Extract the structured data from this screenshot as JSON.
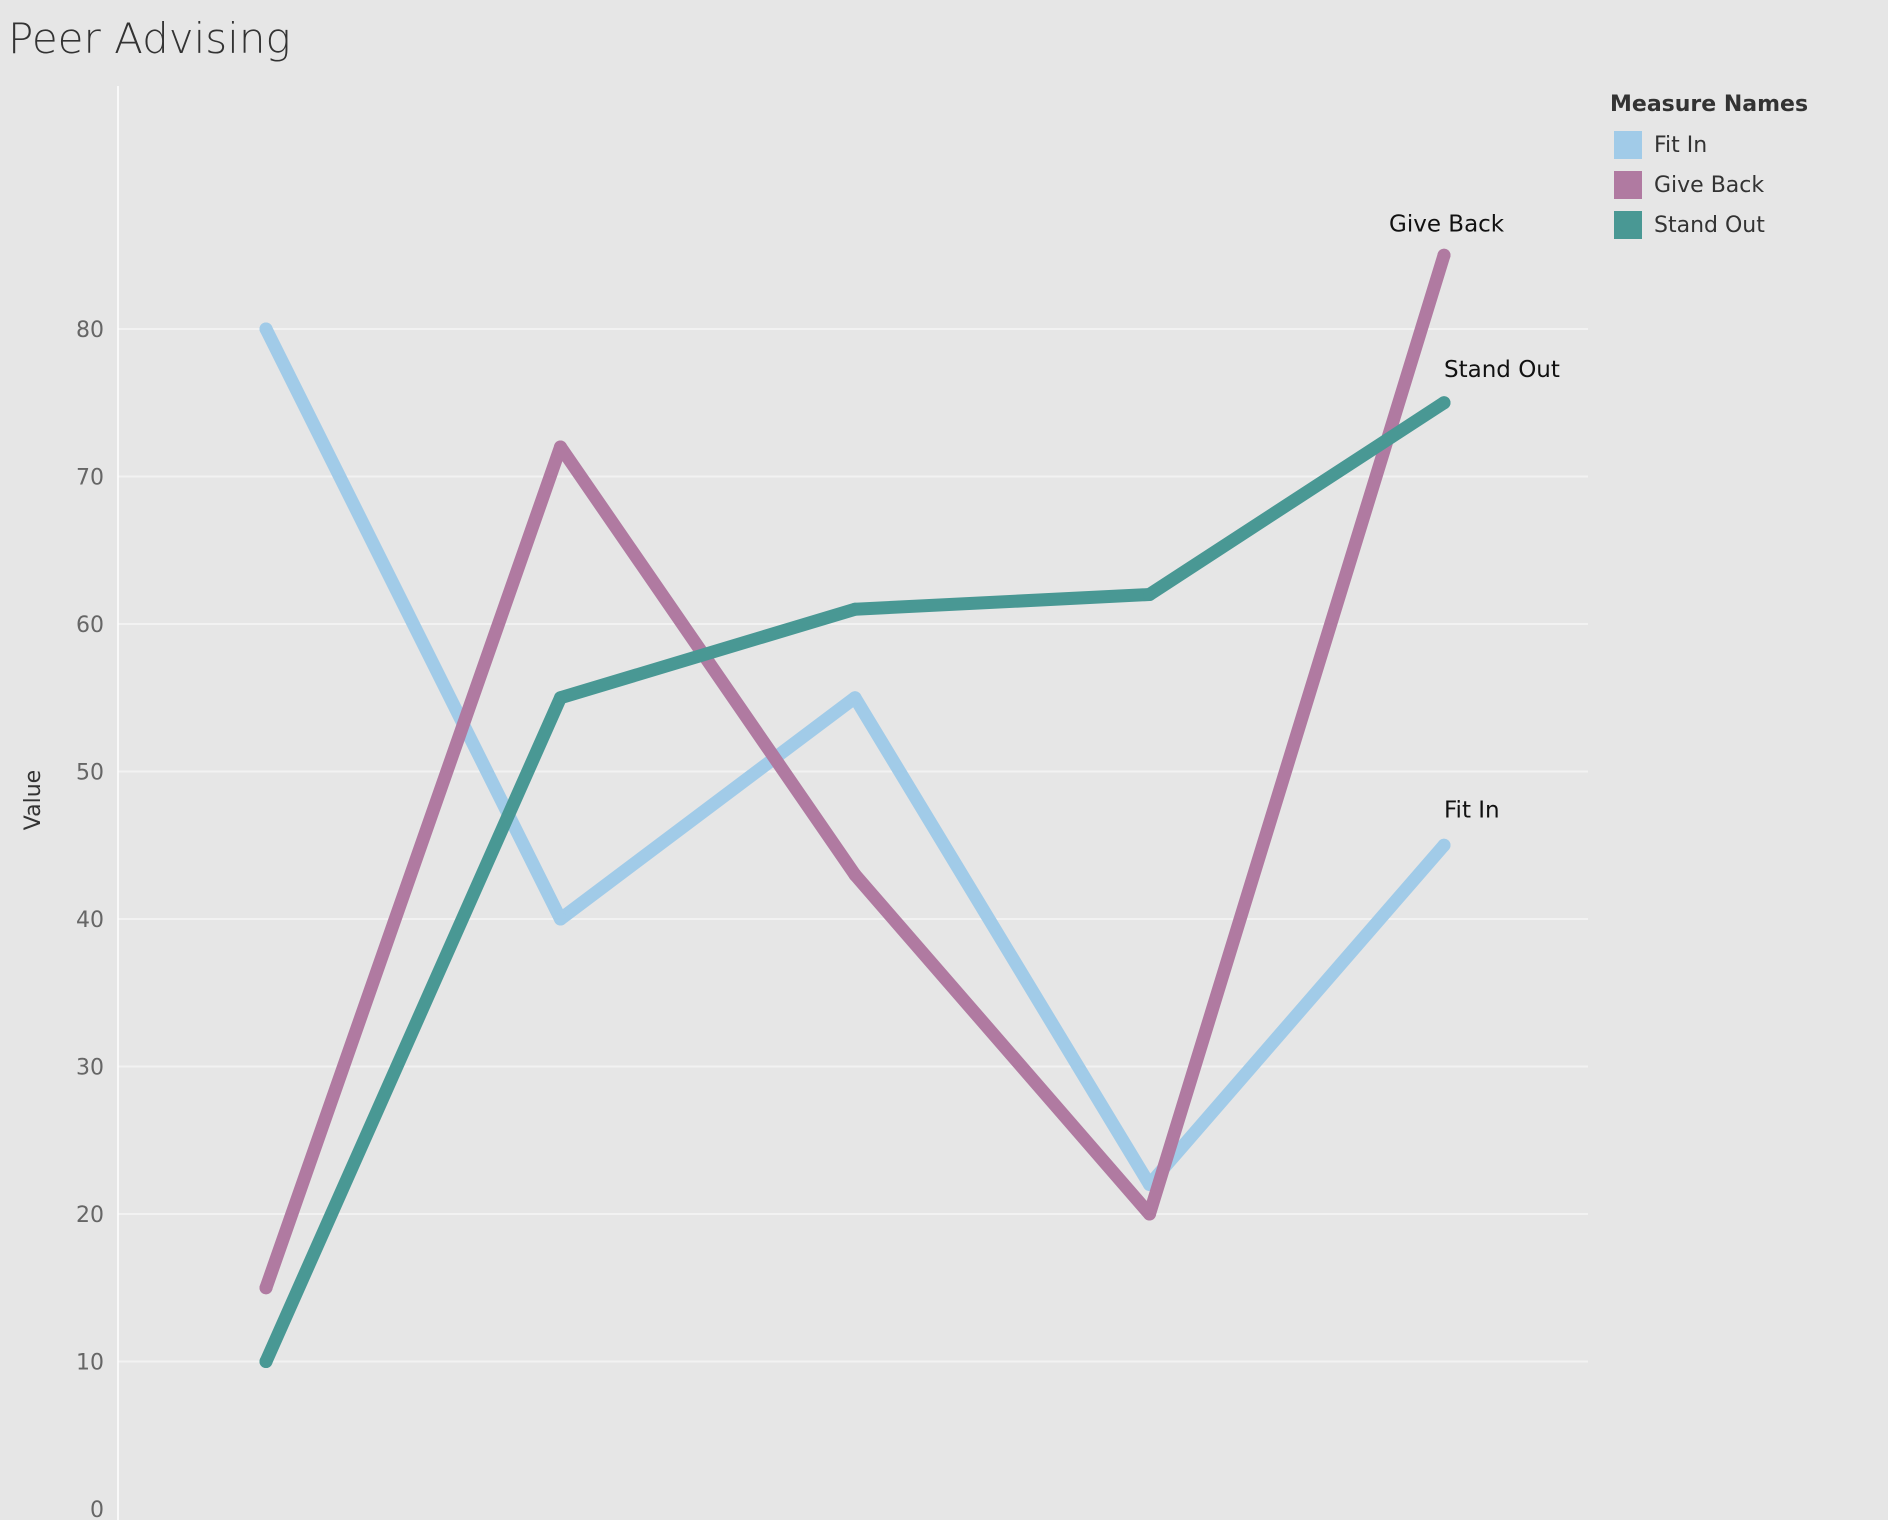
{
  "page": {
    "title": "Peer Advising"
  },
  "legend": {
    "title": "Measure Names"
  },
  "chart_data": {
    "type": "line",
    "title": "Peer Advising",
    "xlabel": "",
    "ylabel": "Value",
    "ylim": [
      0,
      90
    ],
    "yticks": [
      0,
      10,
      20,
      30,
      40,
      50,
      60,
      70,
      80
    ],
    "grid": true,
    "legend_position": "top-right",
    "x": [
      1,
      2,
      3,
      4,
      5
    ],
    "series": [
      {
        "name": "Fit In",
        "color": "#a1cbe8",
        "values": [
          80,
          40,
          55,
          22,
          45
        ],
        "end_label": "Fit In"
      },
      {
        "name": "Give Back",
        "color": "#b07aa1",
        "values": [
          15,
          72,
          43,
          20,
          85
        ],
        "end_label": "Give Back"
      },
      {
        "name": "Stand Out",
        "color": "#499894",
        "values": [
          10,
          55,
          61,
          62,
          75
        ],
        "end_label": "Stand Out"
      }
    ]
  }
}
